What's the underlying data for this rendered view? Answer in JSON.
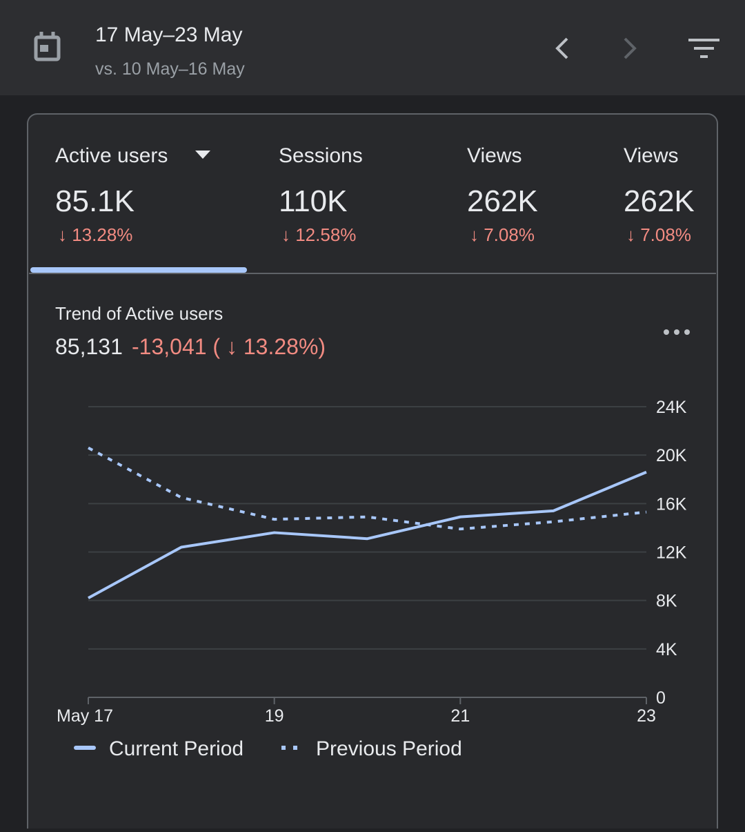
{
  "header": {
    "title": "17 May–23 May",
    "subtitle": "vs. 10 May–16 May"
  },
  "metrics": [
    {
      "label": "Active users",
      "value": "85.1K",
      "change": "↓ 13.28%"
    },
    {
      "label": "Sessions",
      "value": "110K",
      "change": "↓ 12.58%"
    },
    {
      "label": "Views",
      "value": "262K",
      "change": "↓ 7.08%"
    },
    {
      "label": "Views",
      "value": "262K",
      "change": "↓ 7.08%"
    }
  ],
  "trend": {
    "title": "Trend of Active users",
    "total": "85,131",
    "change": "-13,041 ( ↓ 13.28%)"
  },
  "chart_data": {
    "type": "line",
    "categories": [
      "May 17",
      null,
      "19",
      null,
      "21",
      null,
      "23"
    ],
    "series": [
      {
        "name": "Current Period",
        "color": "#a8c7fa",
        "style": "solid",
        "values": [
          8200,
          12400,
          13600,
          13100,
          14900,
          15400,
          18600
        ]
      },
      {
        "name": "Previous Period",
        "color": "#a8c7fa",
        "style": "dashed",
        "values": [
          20600,
          16500,
          14700,
          14900,
          13900,
          14500,
          15300
        ]
      }
    ],
    "ylim": [
      0,
      24000
    ],
    "yticks": [
      0,
      {
        "value": 4000,
        "label": "4K"
      },
      {
        "value": 8000,
        "label": "8K"
      },
      {
        "value": 12000,
        "label": "12K"
      },
      {
        "value": 16000,
        "label": "16K"
      },
      {
        "value": 20000,
        "label": "20K"
      },
      {
        "value": 24000,
        "label": "24K"
      }
    ],
    "grid": true
  }
}
